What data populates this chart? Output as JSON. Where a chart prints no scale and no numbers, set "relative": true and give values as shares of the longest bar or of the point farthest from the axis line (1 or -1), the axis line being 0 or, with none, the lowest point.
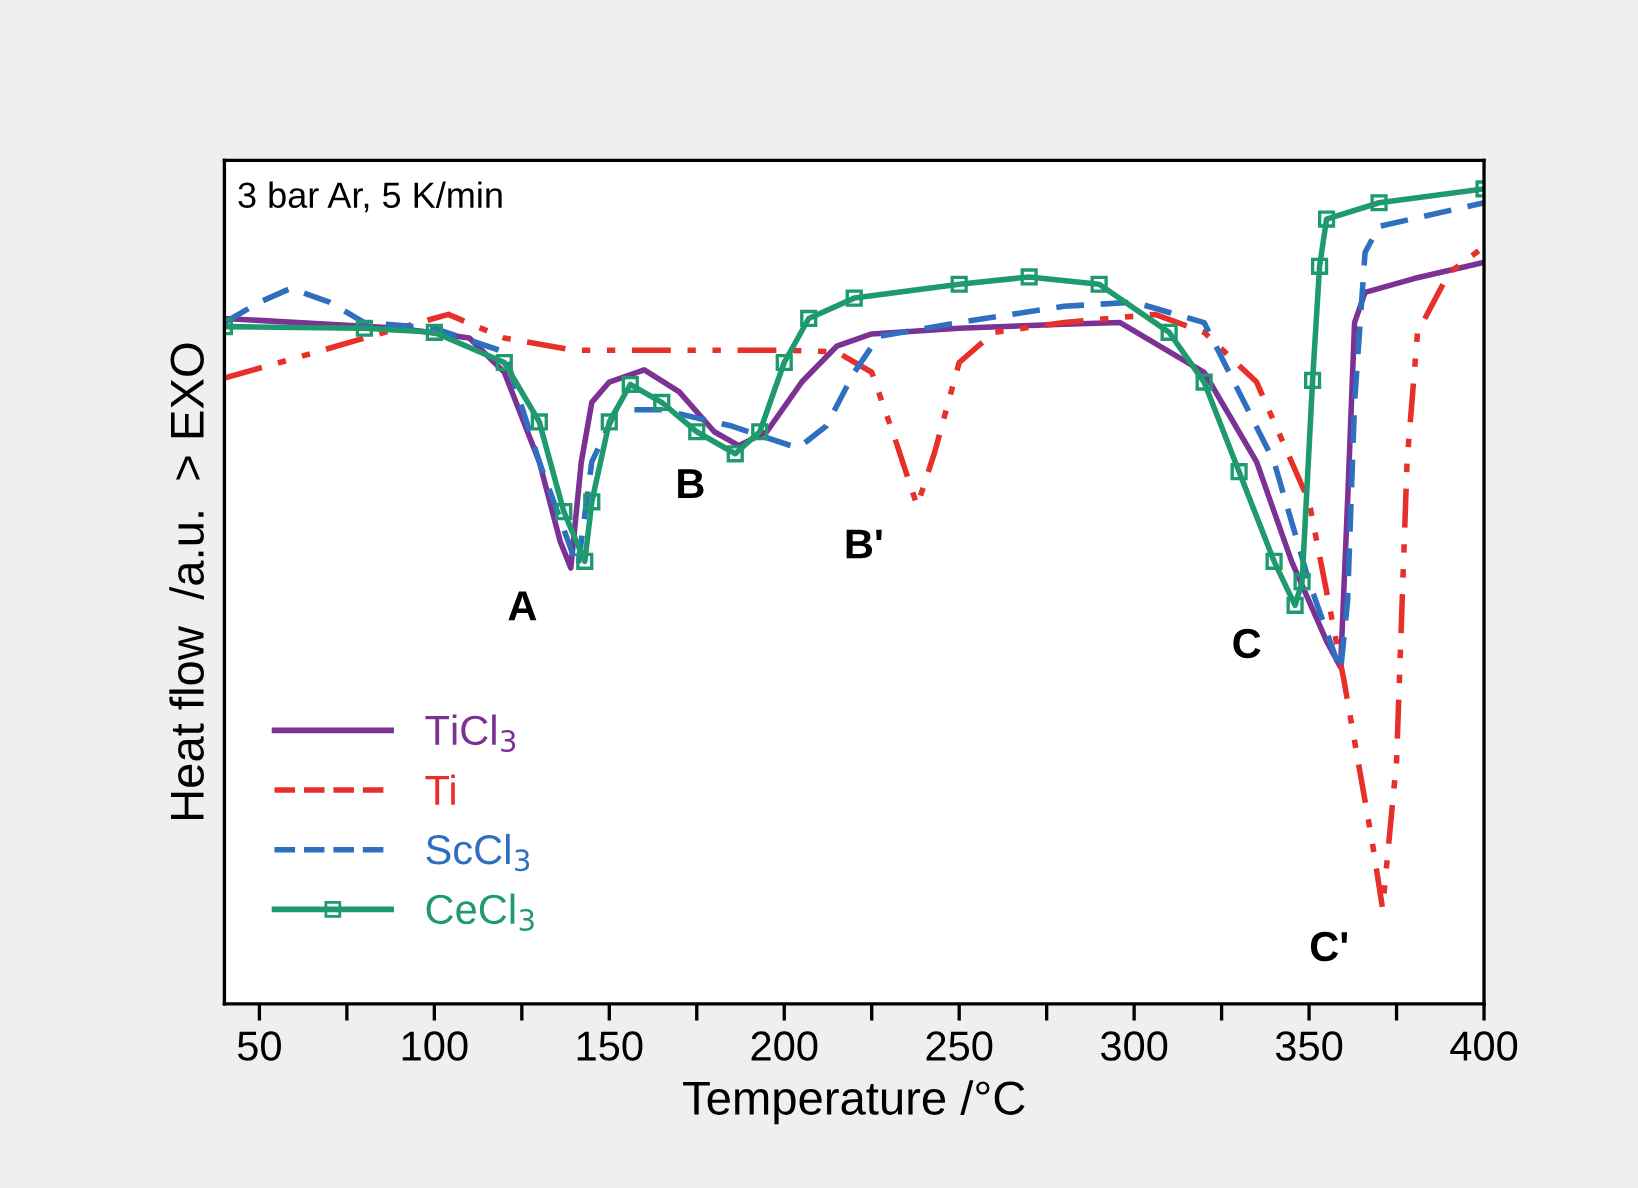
{
  "chart_data": {
    "type": "line",
    "relative": true,
    "xlabel": "Temperature /°C",
    "ylabel": "Heat flow  /a.u.  > EXO",
    "xlim": [
      40,
      400
    ],
    "xticks": [
      50,
      {
        "value": 75,
        "label": null
      },
      100,
      {
        "value": 125,
        "label": null
      },
      150,
      {
        "value": 175,
        "label": null
      },
      200,
      {
        "value": 225,
        "label": null
      },
      250,
      {
        "value": 275,
        "label": null
      },
      300,
      {
        "value": 325,
        "label": null
      },
      350,
      {
        "value": 375,
        "label": null
      },
      400
    ],
    "tick_labels": "x",
    "grid": false,
    "legend": "bottom left",
    "annotations": [
      "3 bar Ar, 5 K/min",
      {
        "text": "A",
        "x": 139,
        "y": 0.535
      },
      {
        "text": "B",
        "x": 187,
        "y": 0.685
      },
      {
        "text": "B'",
        "x": 238,
        "y": 0.611
      },
      {
        "text": "C",
        "x": 346,
        "y": 0.489
      },
      {
        "text": "C'",
        "x": 371,
        "y": 0.117
      }
    ],
    "series": [
      {
        "name": "TiCl$_{3}$",
        "color": "#7b3294",
        "line_style": "solid",
        "marker": "none",
        "x": [
          40,
          90,
          110,
          120,
          130,
          136,
          139,
          142,
          145,
          150,
          160,
          170,
          180,
          187,
          195,
          205,
          215,
          225,
          250,
          280,
          296,
          320,
          335,
          345,
          355,
          359,
          361,
          363,
          366,
          380,
          400
        ],
        "values": [
          0.841,
          0.829,
          0.817,
          0.775,
          0.665,
          0.567,
          0.535,
          0.665,
          0.738,
          0.763,
          0.778,
          0.751,
          0.702,
          0.685,
          0.702,
          0.763,
          0.807,
          0.822,
          0.829,
          0.834,
          0.836,
          0.775,
          0.665,
          0.543,
          0.445,
          0.413,
          0.616,
          0.836,
          0.873,
          0.89,
          0.91
        ]
      },
      {
        "name": "Ti",
        "color": "#e8302a",
        "line_style": "dashdot",
        "marker": "none",
        "x": [
          40,
          60,
          80,
          104,
          120,
          140,
          200,
          215,
          225,
          232,
          238,
          243,
          250,
          260,
          280,
          306,
          320,
          335,
          350,
          360,
          368,
          371,
          375,
          378,
          381,
          390,
          400
        ],
        "values": [
          0.768,
          0.792,
          0.817,
          0.846,
          0.817,
          0.802,
          0.802,
          0.8,
          0.775,
          0.689,
          0.611,
          0.677,
          0.787,
          0.824,
          0.836,
          0.846,
          0.824,
          0.763,
          0.616,
          0.396,
          0.2,
          0.117,
          0.298,
          0.665,
          0.824,
          0.897,
          0.929
        ]
      },
      {
        "name": "ScCl$_{3}$",
        "color": "#2f6fc0",
        "line_style": "dashed",
        "marker": "none",
        "x": [
          40,
          50,
          59,
          70,
          80,
          100,
          120,
          130,
          141,
          145,
          152,
          165,
          185,
          204,
          212,
          220,
          227,
          250,
          280,
          300,
          320,
          340,
          350,
          359,
          361,
          363,
          366,
          370,
          400
        ],
        "values": [
          0.836,
          0.861,
          0.878,
          0.861,
          0.836,
          0.829,
          0.8,
          0.665,
          0.535,
          0.665,
          0.729,
          0.729,
          0.709,
          0.682,
          0.709,
          0.775,
          0.819,
          0.836,
          0.856,
          0.861,
          0.836,
          0.665,
          0.518,
          0.408,
          0.494,
          0.738,
          0.922,
          0.954,
          0.983
        ]
      },
      {
        "name": "CeCl$_{3}$",
        "color": "#1f9a6e",
        "line_style": "solid",
        "marker": "square",
        "x": [
          40,
          80,
          100,
          120,
          130,
          137,
          143,
          145,
          150,
          156,
          165,
          175,
          186,
          193,
          200,
          207,
          220,
          250,
          270,
          290,
          310,
          320,
          330,
          340,
          346,
          348,
          351,
          353,
          355,
          370,
          400
        ],
        "values": [
          0.831,
          0.829,
          0.824,
          0.787,
          0.714,
          0.604,
          0.543,
          0.616,
          0.714,
          0.76,
          0.738,
          0.702,
          0.675,
          0.702,
          0.787,
          0.841,
          0.866,
          0.883,
          0.892,
          0.883,
          0.824,
          0.763,
          0.653,
          0.543,
          0.489,
          0.518,
          0.765,
          0.905,
          0.963,
          0.983,
          1.0
        ]
      }
    ]
  }
}
